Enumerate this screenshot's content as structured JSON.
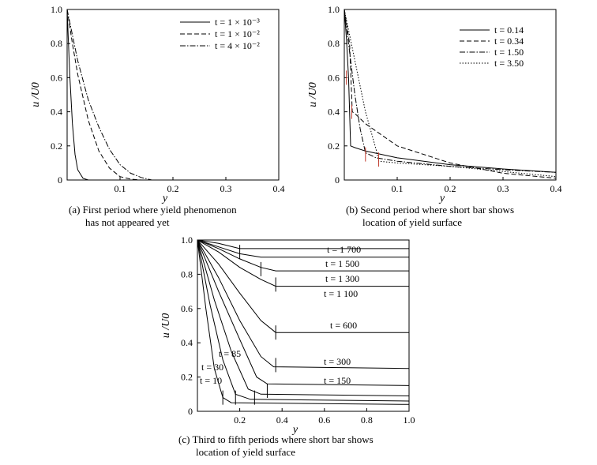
{
  "chart_data": [
    {
      "type": "line",
      "ylabel": "u /U0",
      "xlabel": "y",
      "xlim": [
        0,
        0.4
      ],
      "ylim": [
        0,
        1.0
      ],
      "x_ticks": [
        "0.1",
        "0.2",
        "0.3",
        "0.4"
      ],
      "y_ticks": [
        "0",
        "0.2",
        "0.4",
        "0.6",
        "0.8",
        "1.0"
      ],
      "legend_position": "top-right",
      "grid": false,
      "series": [
        {
          "name": "t = 1 × 10⁻³",
          "style": "solid",
          "x": [
            0,
            0.005,
            0.01,
            0.015,
            0.02,
            0.03,
            0.04,
            0.06,
            0.4
          ],
          "y": [
            1.0,
            0.62,
            0.33,
            0.15,
            0.06,
            0.01,
            0.0,
            0.0,
            0.0
          ]
        },
        {
          "name": "t = 1 × 10⁻²",
          "style": "dashed",
          "x": [
            0,
            0.01,
            0.02,
            0.04,
            0.06,
            0.08,
            0.1,
            0.12,
            0.14,
            0.4
          ],
          "y": [
            1.0,
            0.8,
            0.62,
            0.35,
            0.17,
            0.07,
            0.02,
            0.005,
            0.0,
            0.0
          ]
        },
        {
          "name": "t = 4 × 10⁻²",
          "style": "dashdot",
          "x": [
            0,
            0.02,
            0.04,
            0.06,
            0.08,
            0.1,
            0.12,
            0.14,
            0.16,
            0.4
          ],
          "y": [
            1.0,
            0.7,
            0.47,
            0.31,
            0.18,
            0.09,
            0.04,
            0.015,
            0.0,
            0.0
          ]
        }
      ],
      "caption_line1": "(a) First period where yield phenomenon",
      "caption_line2": "has not appeared yet"
    },
    {
      "type": "line",
      "ylabel": "u /U0",
      "xlabel": "y",
      "xlim": [
        0,
        0.4
      ],
      "ylim": [
        0,
        1.0
      ],
      "x_ticks": [
        "0.1",
        "0.2",
        "0.3",
        "0.4"
      ],
      "y_ticks": [
        "0",
        "0.2",
        "0.4",
        "0.6",
        "0.8",
        "1.0"
      ],
      "legend_position": "top-right",
      "grid": false,
      "series": [
        {
          "name": "t = 0.14",
          "style": "solid",
          "x": [
            0,
            0.004,
            0.008,
            0.012,
            0.02,
            0.04,
            0.1,
            0.2,
            0.3,
            0.4
          ],
          "y": [
            1.0,
            0.83,
            0.6,
            0.2,
            0.19,
            0.17,
            0.13,
            0.09,
            0.065,
            0.045
          ]
        },
        {
          "name": "t = 0.34",
          "style": "dashed",
          "x": [
            0,
            0.01,
            0.015,
            0.02,
            0.04,
            0.1,
            0.2,
            0.3,
            0.4
          ],
          "y": [
            1.0,
            0.8,
            0.4,
            0.39,
            0.33,
            0.2,
            0.1,
            0.04,
            0.01
          ]
        },
        {
          "name": "t = 1.50",
          "style": "dashdot",
          "x": [
            0,
            0.01,
            0.02,
            0.03,
            0.04,
            0.06,
            0.1,
            0.2,
            0.3,
            0.4
          ],
          "y": [
            1.0,
            0.75,
            0.5,
            0.3,
            0.16,
            0.13,
            0.11,
            0.08,
            0.06,
            0.045
          ]
        },
        {
          "name": "t = 3.50",
          "style": "dotted",
          "x": [
            0,
            0.02,
            0.04,
            0.06,
            0.065,
            0.1,
            0.2,
            0.3,
            0.4
          ],
          "y": [
            1.0,
            0.7,
            0.4,
            0.18,
            0.11,
            0.1,
            0.08,
            0.05,
            0.02
          ]
        }
      ],
      "yield_bars": [
        {
          "x": 0.004,
          "y": 0.6
        },
        {
          "x": 0.014,
          "y": 0.4
        },
        {
          "x": 0.04,
          "y": 0.15
        },
        {
          "x": 0.065,
          "y": 0.12
        }
      ],
      "caption_line1": "(b) Second period where short bar shows",
      "caption_line2": "location of yield surface"
    },
    {
      "type": "line",
      "ylabel": "u /U0",
      "xlabel": "y",
      "xlim": [
        0,
        1.0
      ],
      "ylim": [
        0,
        1.0
      ],
      "x_ticks": [
        "0.2",
        "0.4",
        "0.6",
        "0.8",
        "1.0"
      ],
      "y_ticks": [
        "0",
        "0.2",
        "0.4",
        "0.6",
        "0.8",
        "1.0"
      ],
      "grid": false,
      "series": [
        {
          "name": "t = 10",
          "x": [
            0,
            0.04,
            0.08,
            0.12,
            0.16,
            1.0
          ],
          "y": [
            1.0,
            0.6,
            0.25,
            0.08,
            0.05,
            0.04
          ]
        },
        {
          "name": "t = 30",
          "x": [
            0,
            0.06,
            0.12,
            0.18,
            0.25,
            1.0
          ],
          "y": [
            1.0,
            0.62,
            0.3,
            0.1,
            0.07,
            0.06
          ]
        },
        {
          "name": "t = 85",
          "x": [
            0,
            0.08,
            0.16,
            0.24,
            0.3,
            1.0
          ],
          "y": [
            1.0,
            0.65,
            0.35,
            0.13,
            0.1,
            0.09
          ]
        },
        {
          "name": "t = 150",
          "x": [
            0,
            0.1,
            0.2,
            0.28,
            0.33,
            1.0
          ],
          "y": [
            1.0,
            0.7,
            0.42,
            0.2,
            0.16,
            0.15
          ]
        },
        {
          "name": "t = 300",
          "x": [
            0,
            0.1,
            0.2,
            0.3,
            0.36,
            1.0
          ],
          "y": [
            1.0,
            0.78,
            0.53,
            0.32,
            0.26,
            0.25
          ]
        },
        {
          "name": "t = 600",
          "x": [
            0,
            0.1,
            0.2,
            0.3,
            0.37,
            1.0
          ],
          "y": [
            1.0,
            0.86,
            0.69,
            0.53,
            0.46,
            0.46
          ]
        },
        {
          "name": "t = 1 100",
          "x": [
            0,
            0.1,
            0.2,
            0.3,
            0.37,
            1.0
          ],
          "y": [
            1.0,
            0.93,
            0.84,
            0.77,
            0.73,
            0.73
          ]
        },
        {
          "name": "t = 1 300",
          "x": [
            0,
            0.1,
            0.2,
            0.3,
            0.37,
            1.0
          ],
          "y": [
            1.0,
            0.95,
            0.89,
            0.84,
            0.82,
            0.82
          ]
        },
        {
          "name": "t = 1 500",
          "x": [
            0,
            0.1,
            0.2,
            0.3,
            1.0
          ],
          "y": [
            1.0,
            0.96,
            0.92,
            0.9,
            0.9
          ]
        },
        {
          "name": "t = 1 700",
          "x": [
            0,
            0.1,
            0.2,
            1.0
          ],
          "y": [
            1.0,
            0.98,
            0.95,
            0.95
          ]
        }
      ],
      "yield_bars": [
        {
          "x": 0.12,
          "y": 0.08
        },
        {
          "x": 0.18,
          "y": 0.08
        },
        {
          "x": 0.27,
          "y": 0.08
        },
        {
          "x": 0.33,
          "y": 0.12
        },
        {
          "x": 0.37,
          "y": 0.27
        },
        {
          "x": 0.37,
          "y": 0.46
        },
        {
          "x": 0.37,
          "y": 0.74
        },
        {
          "x": 0.3,
          "y": 0.83
        },
        {
          "x": 0.2,
          "y": 0.93
        }
      ],
      "caption_line1": "(c) Third to fifth periods where short bar shows",
      "caption_line2": "location of yield surface"
    }
  ]
}
